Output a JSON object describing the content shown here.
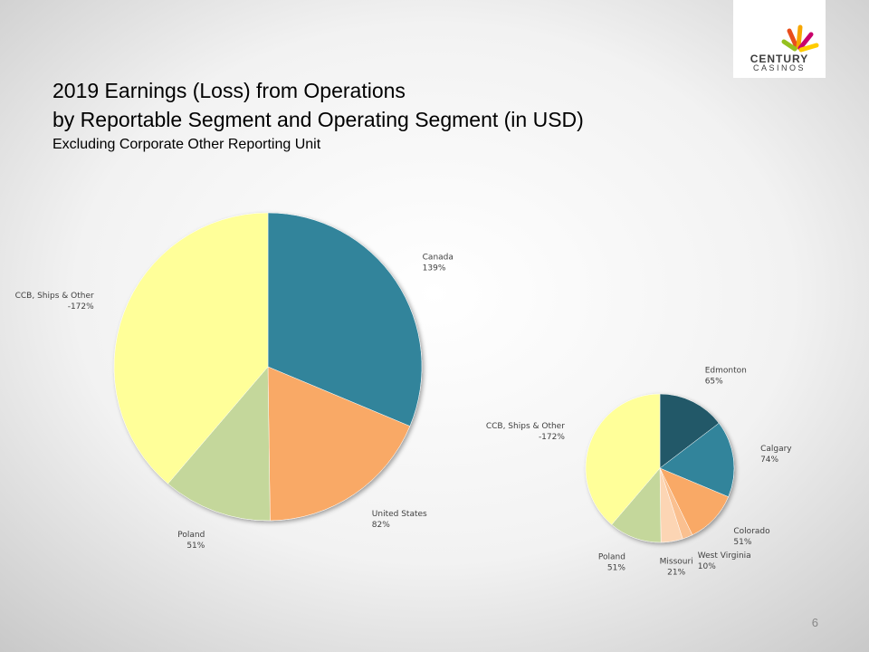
{
  "header": {
    "title": [
      "2019 Earnings (Loss) from Operations",
      "by Reportable Segment and Operating Segment (in USD)"
    ],
    "subtitle": "Excluding Corporate Other Reporting Unit"
  },
  "logo": {
    "top": "CENTURY",
    "bottom": "CASINOS"
  },
  "page_number": "6",
  "chart_data": [
    {
      "type": "pie",
      "categories": [
        "Canada",
        "United States",
        "Poland",
        "CCB, Ships & Other"
      ],
      "values": [
        139,
        82,
        51,
        -172
      ],
      "value_labels": [
        "139%",
        "82%",
        "51%",
        "-172%"
      ],
      "colors": [
        "#31849b",
        "#f9a966",
        "#c4d79b",
        "#ffff99"
      ]
    },
    {
      "type": "pie",
      "categories": [
        "Edmonton",
        "Calgary",
        "Colorado",
        "West Virginia",
        "Missouri",
        "Poland",
        "CCB, Ships & Other"
      ],
      "values": [
        65,
        74,
        51,
        10,
        21,
        51,
        -172
      ],
      "value_labels": [
        "65%",
        "74%",
        "51%",
        "10%",
        "21%",
        "51%",
        "-172%"
      ],
      "colors": [
        "#215868",
        "#31849b",
        "#f9a966",
        "#fac090",
        "#fcd5b4",
        "#c4d79b",
        "#ffff99"
      ]
    }
  ]
}
